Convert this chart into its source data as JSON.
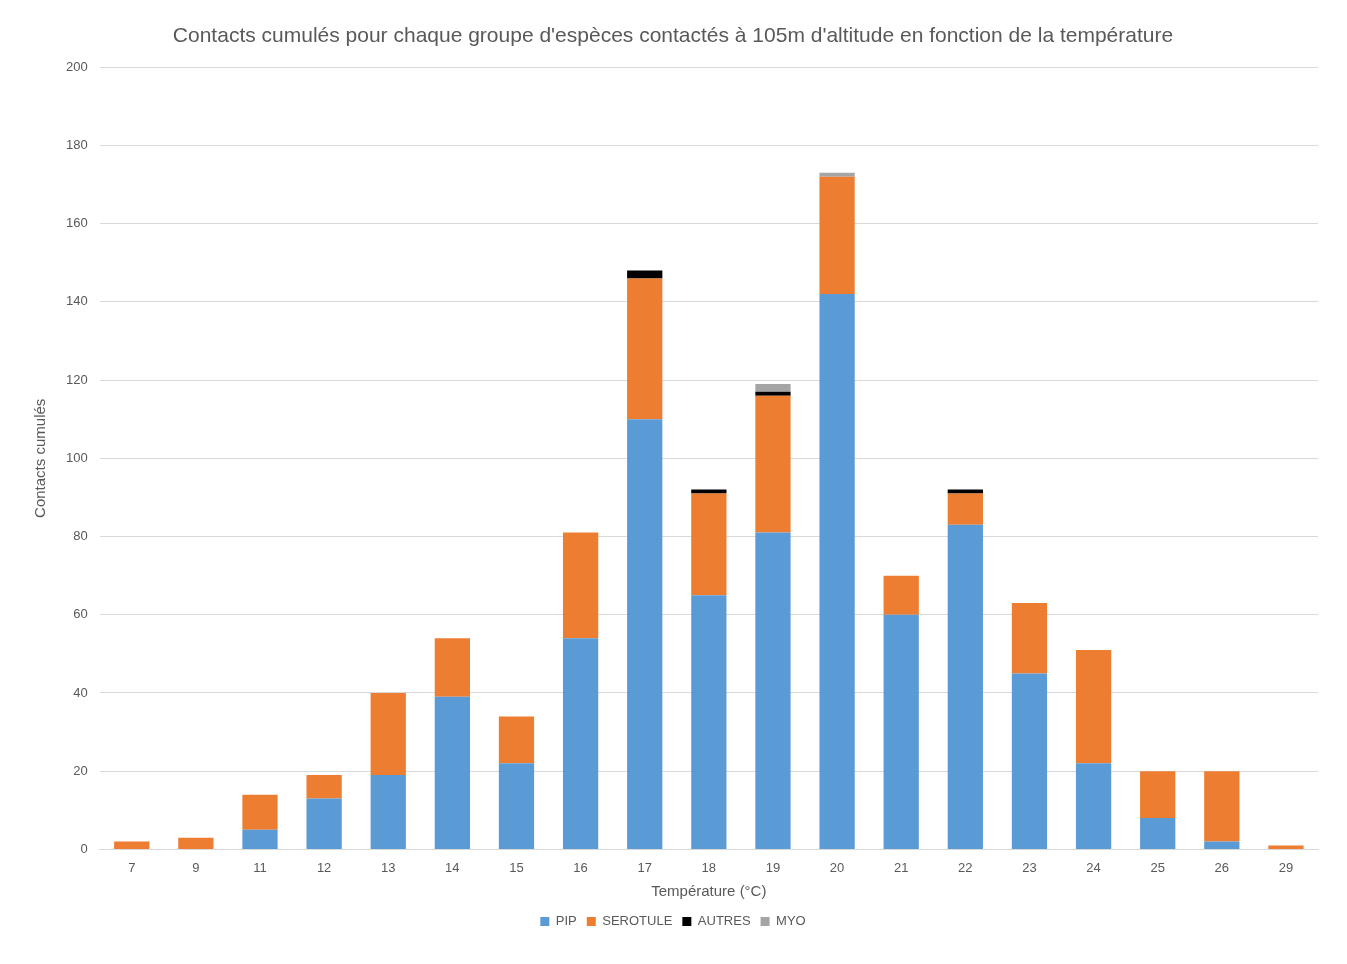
{
  "chart_data": {
    "type": "bar",
    "title": "Contacts cumulés pour chaque groupe d'espèces contactés à 105m d'altitude en fonction de la température",
    "xlabel": "Température (°C)",
    "ylabel": "Contacts cumulés",
    "categories": [
      "7",
      "9",
      "11",
      "12",
      "13",
      "14",
      "15",
      "16",
      "17",
      "18",
      "19",
      "20",
      "21",
      "22",
      "23",
      "24",
      "25",
      "26",
      "29"
    ],
    "series": [
      {
        "name": "PIP",
        "color": "#5b9bd5",
        "values": [
          0,
          0,
          5,
          13,
          19,
          39,
          22,
          54,
          110,
          65,
          81,
          142,
          60,
          83,
          45,
          22,
          8,
          2,
          0
        ]
      },
      {
        "name": "SEROTULE",
        "color": "#ed7d31",
        "values": [
          2,
          3,
          9,
          6,
          21,
          15,
          12,
          27,
          36,
          26,
          35,
          30,
          10,
          8,
          18,
          29,
          12,
          18,
          1
        ]
      },
      {
        "name": "AUTRES",
        "color": "#000000",
        "values": [
          0,
          0,
          0,
          0,
          0,
          0,
          0,
          0,
          2,
          1,
          1,
          0,
          0,
          1,
          0,
          0,
          0,
          0,
          0
        ]
      },
      {
        "name": "MYO",
        "color": "#a5a5a5",
        "values": [
          0,
          0,
          0,
          0,
          0,
          0,
          0,
          0,
          0,
          0,
          2,
          1,
          0,
          0,
          0,
          0,
          0,
          0,
          0
        ]
      }
    ],
    "stacked": true,
    "ylim": [
      0,
      200
    ],
    "yticks": [
      0,
      20,
      40,
      60,
      80,
      100,
      120,
      140,
      160,
      180,
      200
    ],
    "grid": "y",
    "legend": "bottom"
  }
}
